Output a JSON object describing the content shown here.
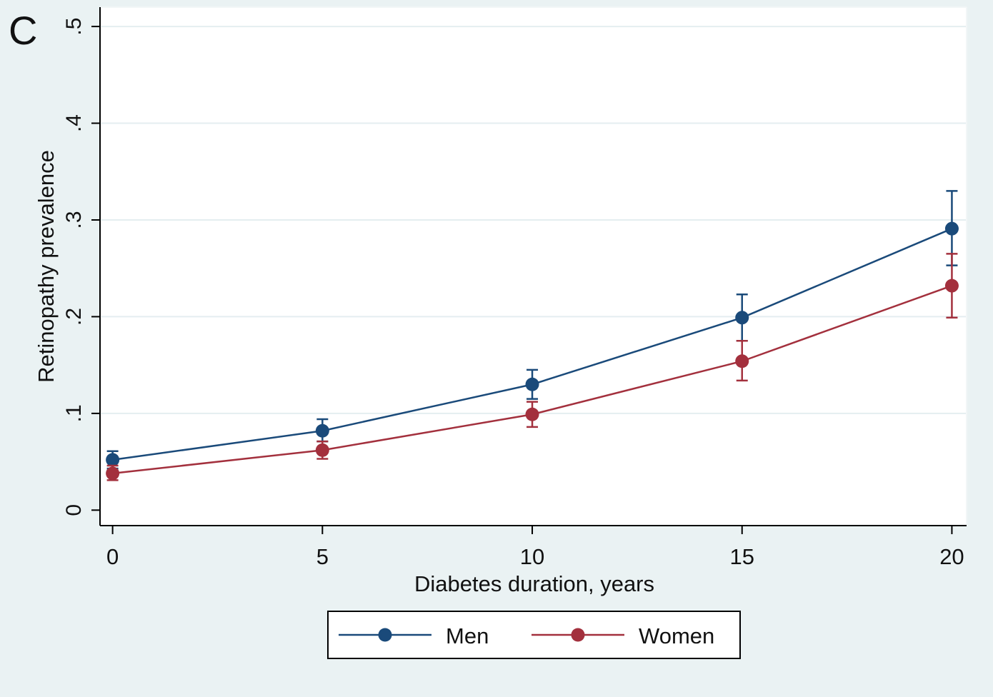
{
  "panel_label": "C",
  "colors": {
    "background": "#eaf2f3",
    "plot_background": "#ffffff",
    "grid": "#e4eef0",
    "axis": "#000000",
    "men": "#1a4a7a",
    "women": "#a3303d"
  },
  "chart_data": {
    "type": "line",
    "title": "",
    "xlabel": "Diabetes duration, years",
    "ylabel": "Retinopathy prevalence",
    "x": [
      0,
      5,
      10,
      15,
      20
    ],
    "xlim": [
      -0.3,
      20.35
    ],
    "ylim": [
      -0.016,
      0.52
    ],
    "x_ticks": [
      {
        "value": 0,
        "label": "0"
      },
      {
        "value": 5,
        "label": "5"
      },
      {
        "value": 10,
        "label": "10"
      },
      {
        "value": 15,
        "label": "15"
      },
      {
        "value": 20,
        "label": "20"
      }
    ],
    "y_ticks": [
      {
        "value": 0,
        "label": "0"
      },
      {
        "value": 0.1,
        "label": ".1"
      },
      {
        "value": 0.2,
        "label": ".2"
      },
      {
        "value": 0.3,
        "label": ".3"
      },
      {
        "value": 0.4,
        "label": ".4"
      },
      {
        "value": 0.5,
        "label": ".5"
      }
    ],
    "grid": true,
    "legend_position": "bottom",
    "series": [
      {
        "name": "Men",
        "color": "#1a4a7a",
        "values": [
          0.052,
          0.082,
          0.13,
          0.199,
          0.291
        ],
        "ci_low": [
          0.043,
          0.071,
          0.115,
          0.175,
          0.253
        ],
        "ci_high": [
          0.061,
          0.094,
          0.145,
          0.223,
          0.33
        ]
      },
      {
        "name": "Women",
        "color": "#a3303d",
        "values": [
          0.038,
          0.062,
          0.099,
          0.154,
          0.232
        ],
        "ci_low": [
          0.031,
          0.053,
          0.086,
          0.134,
          0.199
        ],
        "ci_high": [
          0.046,
          0.071,
          0.112,
          0.175,
          0.265
        ]
      }
    ]
  }
}
